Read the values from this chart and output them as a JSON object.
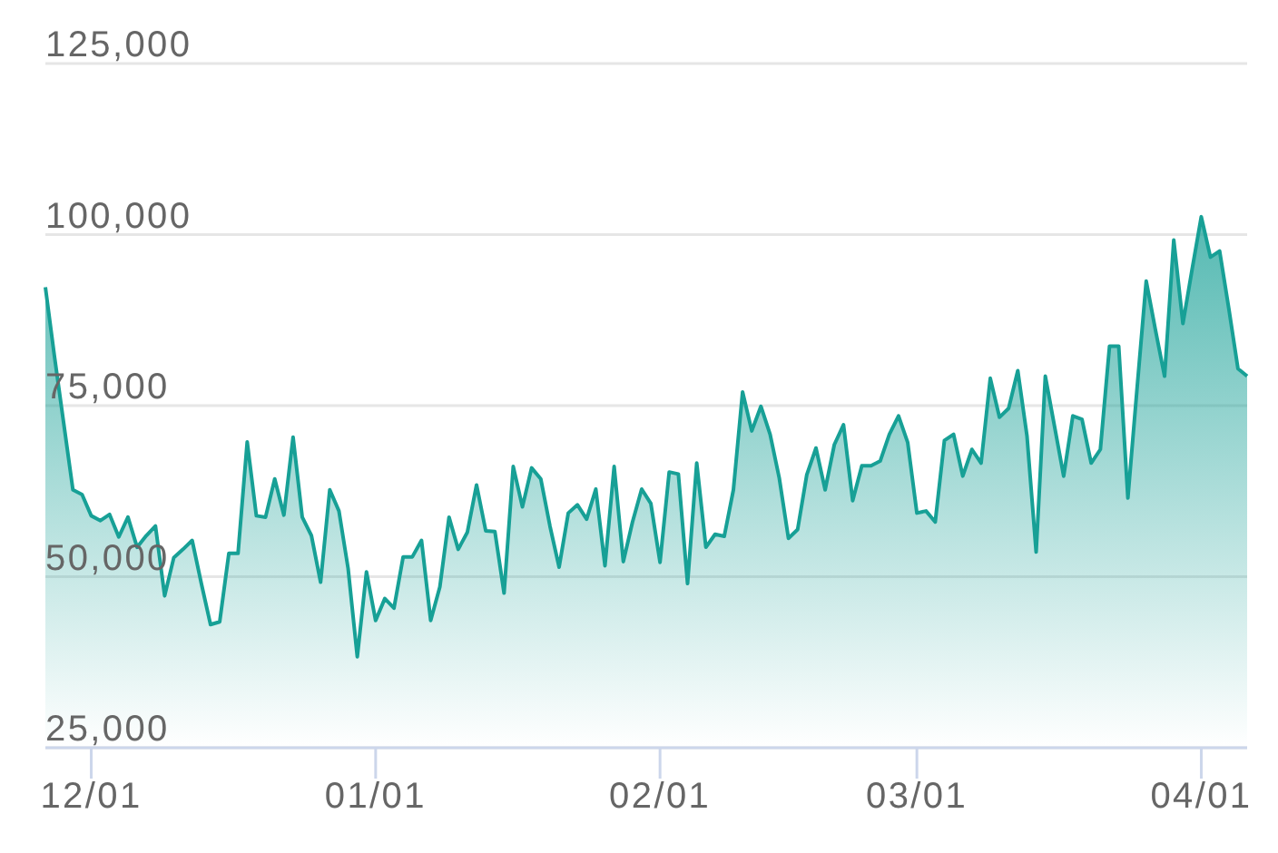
{
  "chart_data": {
    "type": "area",
    "color": "#17a096",
    "categories": [
      null,
      null,
      null,
      null,
      null,
      "12/01",
      null,
      null,
      null,
      null,
      null,
      null,
      null,
      null,
      null,
      null,
      null,
      null,
      null,
      null,
      null,
      null,
      null,
      null,
      null,
      null,
      null,
      null,
      null,
      null,
      null,
      null,
      null,
      null,
      null,
      null,
      "01/01",
      null,
      null,
      null,
      null,
      null,
      null,
      null,
      null,
      null,
      null,
      null,
      null,
      null,
      null,
      null,
      null,
      null,
      null,
      null,
      null,
      null,
      null,
      null,
      null,
      null,
      null,
      null,
      null,
      null,
      null,
      "02/01",
      null,
      null,
      null,
      null,
      null,
      null,
      null,
      null,
      null,
      null,
      null,
      null,
      null,
      null,
      null,
      null,
      null,
      null,
      null,
      null,
      null,
      null,
      null,
      null,
      null,
      null,
      null,
      "03/01",
      null,
      null,
      null,
      null,
      null,
      null,
      null,
      null,
      null,
      null,
      null,
      null,
      null,
      null,
      null,
      null,
      null,
      null,
      null,
      null,
      null,
      null,
      null,
      null,
      null,
      null,
      null,
      null,
      null,
      null,
      "04/01",
      null,
      null,
      null,
      null,
      null
    ],
    "values": [
      92300,
      82100,
      72400,
      62700,
      62000,
      58900,
      58200,
      59100,
      55800,
      58700,
      54300,
      56000,
      57400,
      47200,
      52800,
      54000,
      55300,
      49000,
      43000,
      43400,
      53400,
      53400,
      69700,
      58900,
      58700,
      64300,
      59000,
      70400,
      58700,
      56000,
      49200,
      62700,
      59600,
      51200,
      38300,
      50700,
      43600,
      46800,
      45400,
      52900,
      52900,
      55300,
      43600,
      48500,
      58700,
      54000,
      56500,
      63400,
      56700,
      56600,
      47600,
      66100,
      60200,
      65900,
      64300,
      57400,
      51400,
      59300,
      60500,
      58400,
      62800,
      51600,
      66100,
      52200,
      58000,
      62800,
      60700,
      52100,
      65300,
      65000,
      49000,
      66600,
      54300,
      56200,
      55900,
      62700,
      77000,
      71300,
      74900,
      70800,
      64400,
      55600,
      56900,
      64900,
      68800,
      62700,
      69300,
      72200,
      61100,
      66200,
      66200,
      66900,
      70800,
      73500,
      69600,
      59300,
      59600,
      58000,
      69900,
      70800,
      64700,
      68600,
      66600,
      79000,
      73300,
      74600,
      80100,
      70600,
      53600,
      79300,
      72000,
      64700,
      73500,
      73000,
      66600,
      68600,
      83700,
      83700,
      61500,
      77500,
      93200,
      86100,
      79300,
      99200,
      87000,
      94900,
      102600,
      96700,
      97600,
      89200,
      80400,
      79300
    ],
    "ylim": [
      25000,
      125000
    ],
    "yticks": [
      {
        "value": 25000,
        "label": "25,000"
      },
      {
        "value": 50000,
        "label": "50,000"
      },
      {
        "value": 75000,
        "label": "75,000"
      },
      {
        "value": 100000,
        "label": "100,000"
      },
      {
        "value": 125000,
        "label": "125,000"
      }
    ],
    "grid": "y"
  }
}
